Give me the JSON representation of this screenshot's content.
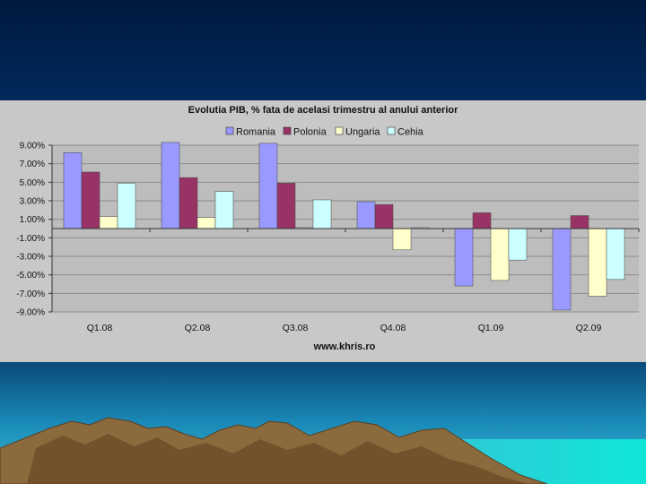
{
  "chart_data": {
    "type": "bar",
    "title": "Evolutia PIB, %  fata de acelasi trimestru al anului anterior",
    "categories": [
      "Q1.08",
      "Q2.08",
      "Q3.08",
      "Q4.08",
      "Q1.09",
      "Q2.09"
    ],
    "series": [
      {
        "name": "Romania",
        "color": "#9999ff",
        "values": [
          8.2,
          9.3,
          9.2,
          2.9,
          -6.2,
          -8.8
        ]
      },
      {
        "name": "Polonia",
        "color": "#993366",
        "values": [
          6.1,
          5.5,
          4.9,
          2.6,
          1.7,
          1.4
        ]
      },
      {
        "name": "Ungaria",
        "color": "#ffffcc",
        "values": [
          1.3,
          1.2,
          0.1,
          -2.3,
          -5.6,
          -7.3
        ]
      },
      {
        "name": "Cehia",
        "color": "#ccffff",
        "values": [
          4.9,
          4.0,
          3.1,
          0.1,
          -3.4,
          -5.5
        ]
      }
    ],
    "yticks": [
      "9.00%",
      "7.00%",
      "5.00%",
      "3.00%",
      "1.00%",
      "-1.00%",
      "-3.00%",
      "-5.00%",
      "-7.00%",
      "-9.00%"
    ],
    "ytick_values": [
      9,
      7,
      5,
      3,
      1,
      -1,
      -3,
      -5,
      -7,
      -9
    ],
    "ylim": [
      -9,
      9
    ],
    "grid": true,
    "legend_position": "top",
    "footer": "www.khris.ro"
  }
}
